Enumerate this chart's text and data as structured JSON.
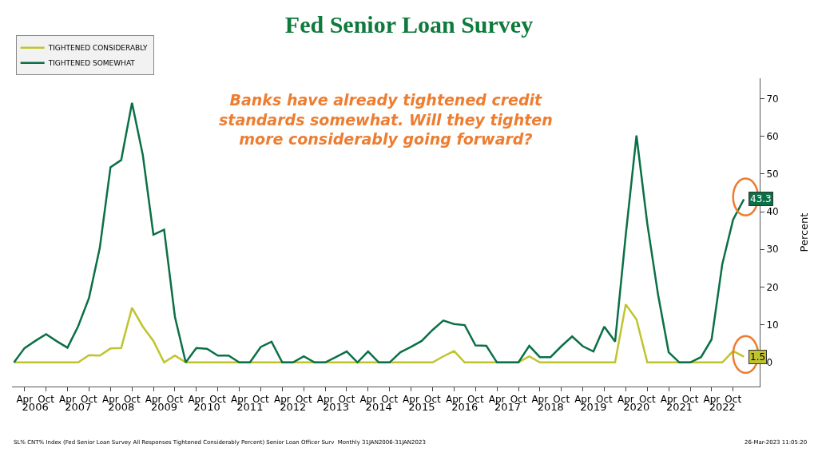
{
  "chart_data": {
    "type": "line",
    "title": "Fed Senior Loan Survey",
    "ylabel": "Percent",
    "x": [
      "2006-01",
      "2006-04",
      "2006-07",
      "2006-10",
      "2007-01",
      "2007-04",
      "2007-07",
      "2007-10",
      "2008-01",
      "2008-04",
      "2008-07",
      "2008-10",
      "2009-01",
      "2009-04",
      "2009-07",
      "2009-10",
      "2010-01",
      "2010-04",
      "2010-07",
      "2010-10",
      "2011-01",
      "2011-04",
      "2011-07",
      "2011-10",
      "2012-01",
      "2012-04",
      "2012-07",
      "2012-10",
      "2013-01",
      "2013-04",
      "2013-07",
      "2013-10",
      "2014-01",
      "2014-04",
      "2014-07",
      "2014-10",
      "2015-01",
      "2015-04",
      "2015-07",
      "2015-10",
      "2016-01",
      "2016-04",
      "2016-07",
      "2016-10",
      "2017-01",
      "2017-04",
      "2017-07",
      "2017-10",
      "2018-01",
      "2018-04",
      "2018-07",
      "2018-10",
      "2019-01",
      "2019-04",
      "2019-07",
      "2019-10",
      "2020-01",
      "2020-04",
      "2020-07",
      "2020-10",
      "2021-01",
      "2021-04",
      "2021-07",
      "2021-10",
      "2022-01",
      "2022-04",
      "2022-07",
      "2022-10",
      "2023-01"
    ],
    "series": [
      {
        "name": "TIGHTENED CONSIDERABLY",
        "color": "#bfc42e",
        "values": [
          0,
          0,
          0,
          0,
          0,
          0,
          0,
          1.9,
          1.8,
          3.7,
          3.8,
          14.5,
          9.5,
          5.7,
          0,
          1.8,
          0,
          0,
          0,
          0,
          0,
          0,
          0,
          0,
          0,
          0,
          0,
          0,
          0,
          0,
          0,
          0,
          0,
          0,
          0,
          0,
          0,
          0,
          0,
          0,
          1.6,
          3.0,
          0,
          0,
          0,
          0,
          0,
          0,
          1.6,
          0,
          0,
          0,
          0,
          0,
          0,
          0,
          0,
          15.4,
          11.4,
          0,
          0,
          0,
          0,
          0,
          0,
          0,
          0,
          3.0,
          1.5
        ],
        "value_labels": [
          null,
          null,
          null,
          null,
          null,
          null,
          null,
          null,
          null,
          null,
          null,
          null,
          null,
          null,
          null,
          null,
          null,
          null,
          null,
          null,
          null,
          null,
          null,
          null,
          null,
          null,
          null,
          null,
          null,
          null,
          null,
          null,
          null,
          null,
          null,
          null,
          null,
          null,
          null,
          null,
          null,
          null,
          null,
          null,
          null,
          null,
          null,
          null,
          null,
          null,
          null,
          null,
          null,
          null,
          null,
          null,
          null,
          null,
          null,
          null,
          null,
          null,
          null,
          null,
          null,
          null,
          null,
          null,
          "1.5"
        ]
      },
      {
        "name": "TIGHTENED SOMEWHAT",
        "color": "#0b7046",
        "values": [
          0,
          3.8,
          5.7,
          7.5,
          5.6,
          3.9,
          9.6,
          17.1,
          30.4,
          51.8,
          53.7,
          68.9,
          55,
          33.9,
          35.2,
          12.1,
          0,
          3.8,
          3.6,
          1.8,
          1.8,
          0,
          0,
          4.1,
          5.5,
          0,
          0,
          1.6,
          0,
          0,
          1.4,
          2.9,
          0,
          2.9,
          0,
          0,
          2.7,
          4.1,
          5.7,
          8.6,
          11.1,
          10.2,
          9.9,
          4.5,
          4.4,
          0,
          0,
          0,
          4.4,
          1.4,
          1.4,
          4.3,
          6.9,
          4.3,
          2.9,
          9.5,
          5.5,
          33.9,
          60.2,
          36.8,
          17.9,
          2.7,
          0,
          0,
          1.4,
          6.1,
          26.1,
          37.9,
          43.3
        ],
        "value_labels": [
          null,
          null,
          null,
          null,
          null,
          null,
          null,
          null,
          null,
          null,
          null,
          null,
          null,
          null,
          null,
          null,
          null,
          null,
          null,
          null,
          null,
          null,
          null,
          null,
          null,
          null,
          null,
          null,
          null,
          null,
          null,
          null,
          null,
          null,
          null,
          null,
          null,
          null,
          null,
          null,
          null,
          null,
          null,
          null,
          null,
          null,
          null,
          null,
          null,
          null,
          null,
          null,
          null,
          null,
          null,
          null,
          null,
          null,
          null,
          null,
          null,
          null,
          null,
          null,
          null,
          null,
          null,
          null,
          "43.3"
        ]
      }
    ],
    "xlim": [
      "2005-12-15",
      "2023-05-15"
    ],
    "xticks": [
      {
        "value": "2006-04",
        "label": "Apr"
      },
      {
        "value": "2006-10",
        "label": "Oct"
      },
      {
        "value": "2007-04",
        "label": "Apr"
      },
      {
        "value": "2007-10",
        "label": "Oct"
      },
      {
        "value": "2008-04",
        "label": "Apr"
      },
      {
        "value": "2008-10",
        "label": "Oct"
      },
      {
        "value": "2009-04",
        "label": "Apr"
      },
      {
        "value": "2009-10",
        "label": "Oct"
      },
      {
        "value": "2010-04",
        "label": "Apr"
      },
      {
        "value": "2010-10",
        "label": "Oct"
      },
      {
        "value": "2011-04",
        "label": "Apr"
      },
      {
        "value": "2011-10",
        "label": "Oct"
      },
      {
        "value": "2012-04",
        "label": "Apr"
      },
      {
        "value": "2012-10",
        "label": "Oct"
      },
      {
        "value": "2013-04",
        "label": "Apr"
      },
      {
        "value": "2013-10",
        "label": "Oct"
      },
      {
        "value": "2014-04",
        "label": "Apr"
      },
      {
        "value": "2014-10",
        "label": "Oct"
      },
      {
        "value": "2015-04",
        "label": "Apr"
      },
      {
        "value": "2015-10",
        "label": "Oct"
      },
      {
        "value": "2016-04",
        "label": "Apr"
      },
      {
        "value": "2016-10",
        "label": "Oct"
      },
      {
        "value": "2017-04",
        "label": "Apr"
      },
      {
        "value": "2017-10",
        "label": "Oct"
      },
      {
        "value": "2018-04",
        "label": "Apr"
      },
      {
        "value": "2018-10",
        "label": "Oct"
      },
      {
        "value": "2019-04",
        "label": "Apr"
      },
      {
        "value": "2019-10",
        "label": "Oct"
      },
      {
        "value": "2020-04",
        "label": "Apr"
      },
      {
        "value": "2020-10",
        "label": "Oct"
      },
      {
        "value": "2021-04",
        "label": "Apr"
      },
      {
        "value": "2021-10",
        "label": "Oct"
      },
      {
        "value": "2022-04",
        "label": "Apr"
      },
      {
        "value": "2022-10",
        "label": "Oct"
      }
    ],
    "x2lim": [
      "2005-12-15",
      "2023-05-15"
    ],
    "x2ticks": [
      {
        "value": "2006-07",
        "label": "2006"
      },
      {
        "value": "2007-07",
        "label": "2007"
      },
      {
        "value": "2008-07",
        "label": "2008"
      },
      {
        "value": "2009-07",
        "label": "2009"
      },
      {
        "value": "2010-07",
        "label": "2010"
      },
      {
        "value": "2011-07",
        "label": "2011"
      },
      {
        "value": "2012-07",
        "label": "2012"
      },
      {
        "value": "2013-07",
        "label": "2013"
      },
      {
        "value": "2014-07",
        "label": "2014"
      },
      {
        "value": "2015-07",
        "label": "2015"
      },
      {
        "value": "2016-07",
        "label": "2016"
      },
      {
        "value": "2017-07",
        "label": "2017"
      },
      {
        "value": "2018-07",
        "label": "2018"
      },
      {
        "value": "2019-07",
        "label": "2019"
      },
      {
        "value": "2020-07",
        "label": "2020"
      },
      {
        "value": "2021-07",
        "label": "2021"
      },
      {
        "value": "2022-07",
        "label": "2022"
      }
    ],
    "ylim": [
      -6.4,
      75.4
    ],
    "yticks": [
      0,
      10,
      20,
      30,
      40,
      50,
      60,
      70
    ],
    "legend": "top left",
    "marker": "none",
    "line_style": "solid",
    "annotations": [
      "Banks have already tightened credit standards somewhat. Will they tighten more considerably going forward?",
      "SL% CNT% Index (Fed Senior Loan Survey All Responses Tightened Considerably Percent) Senior Loan Officer Surv  Monthly 31JAN2006-31JAN2023",
      "26-Mar-2023 11:05:20"
    ]
  }
}
